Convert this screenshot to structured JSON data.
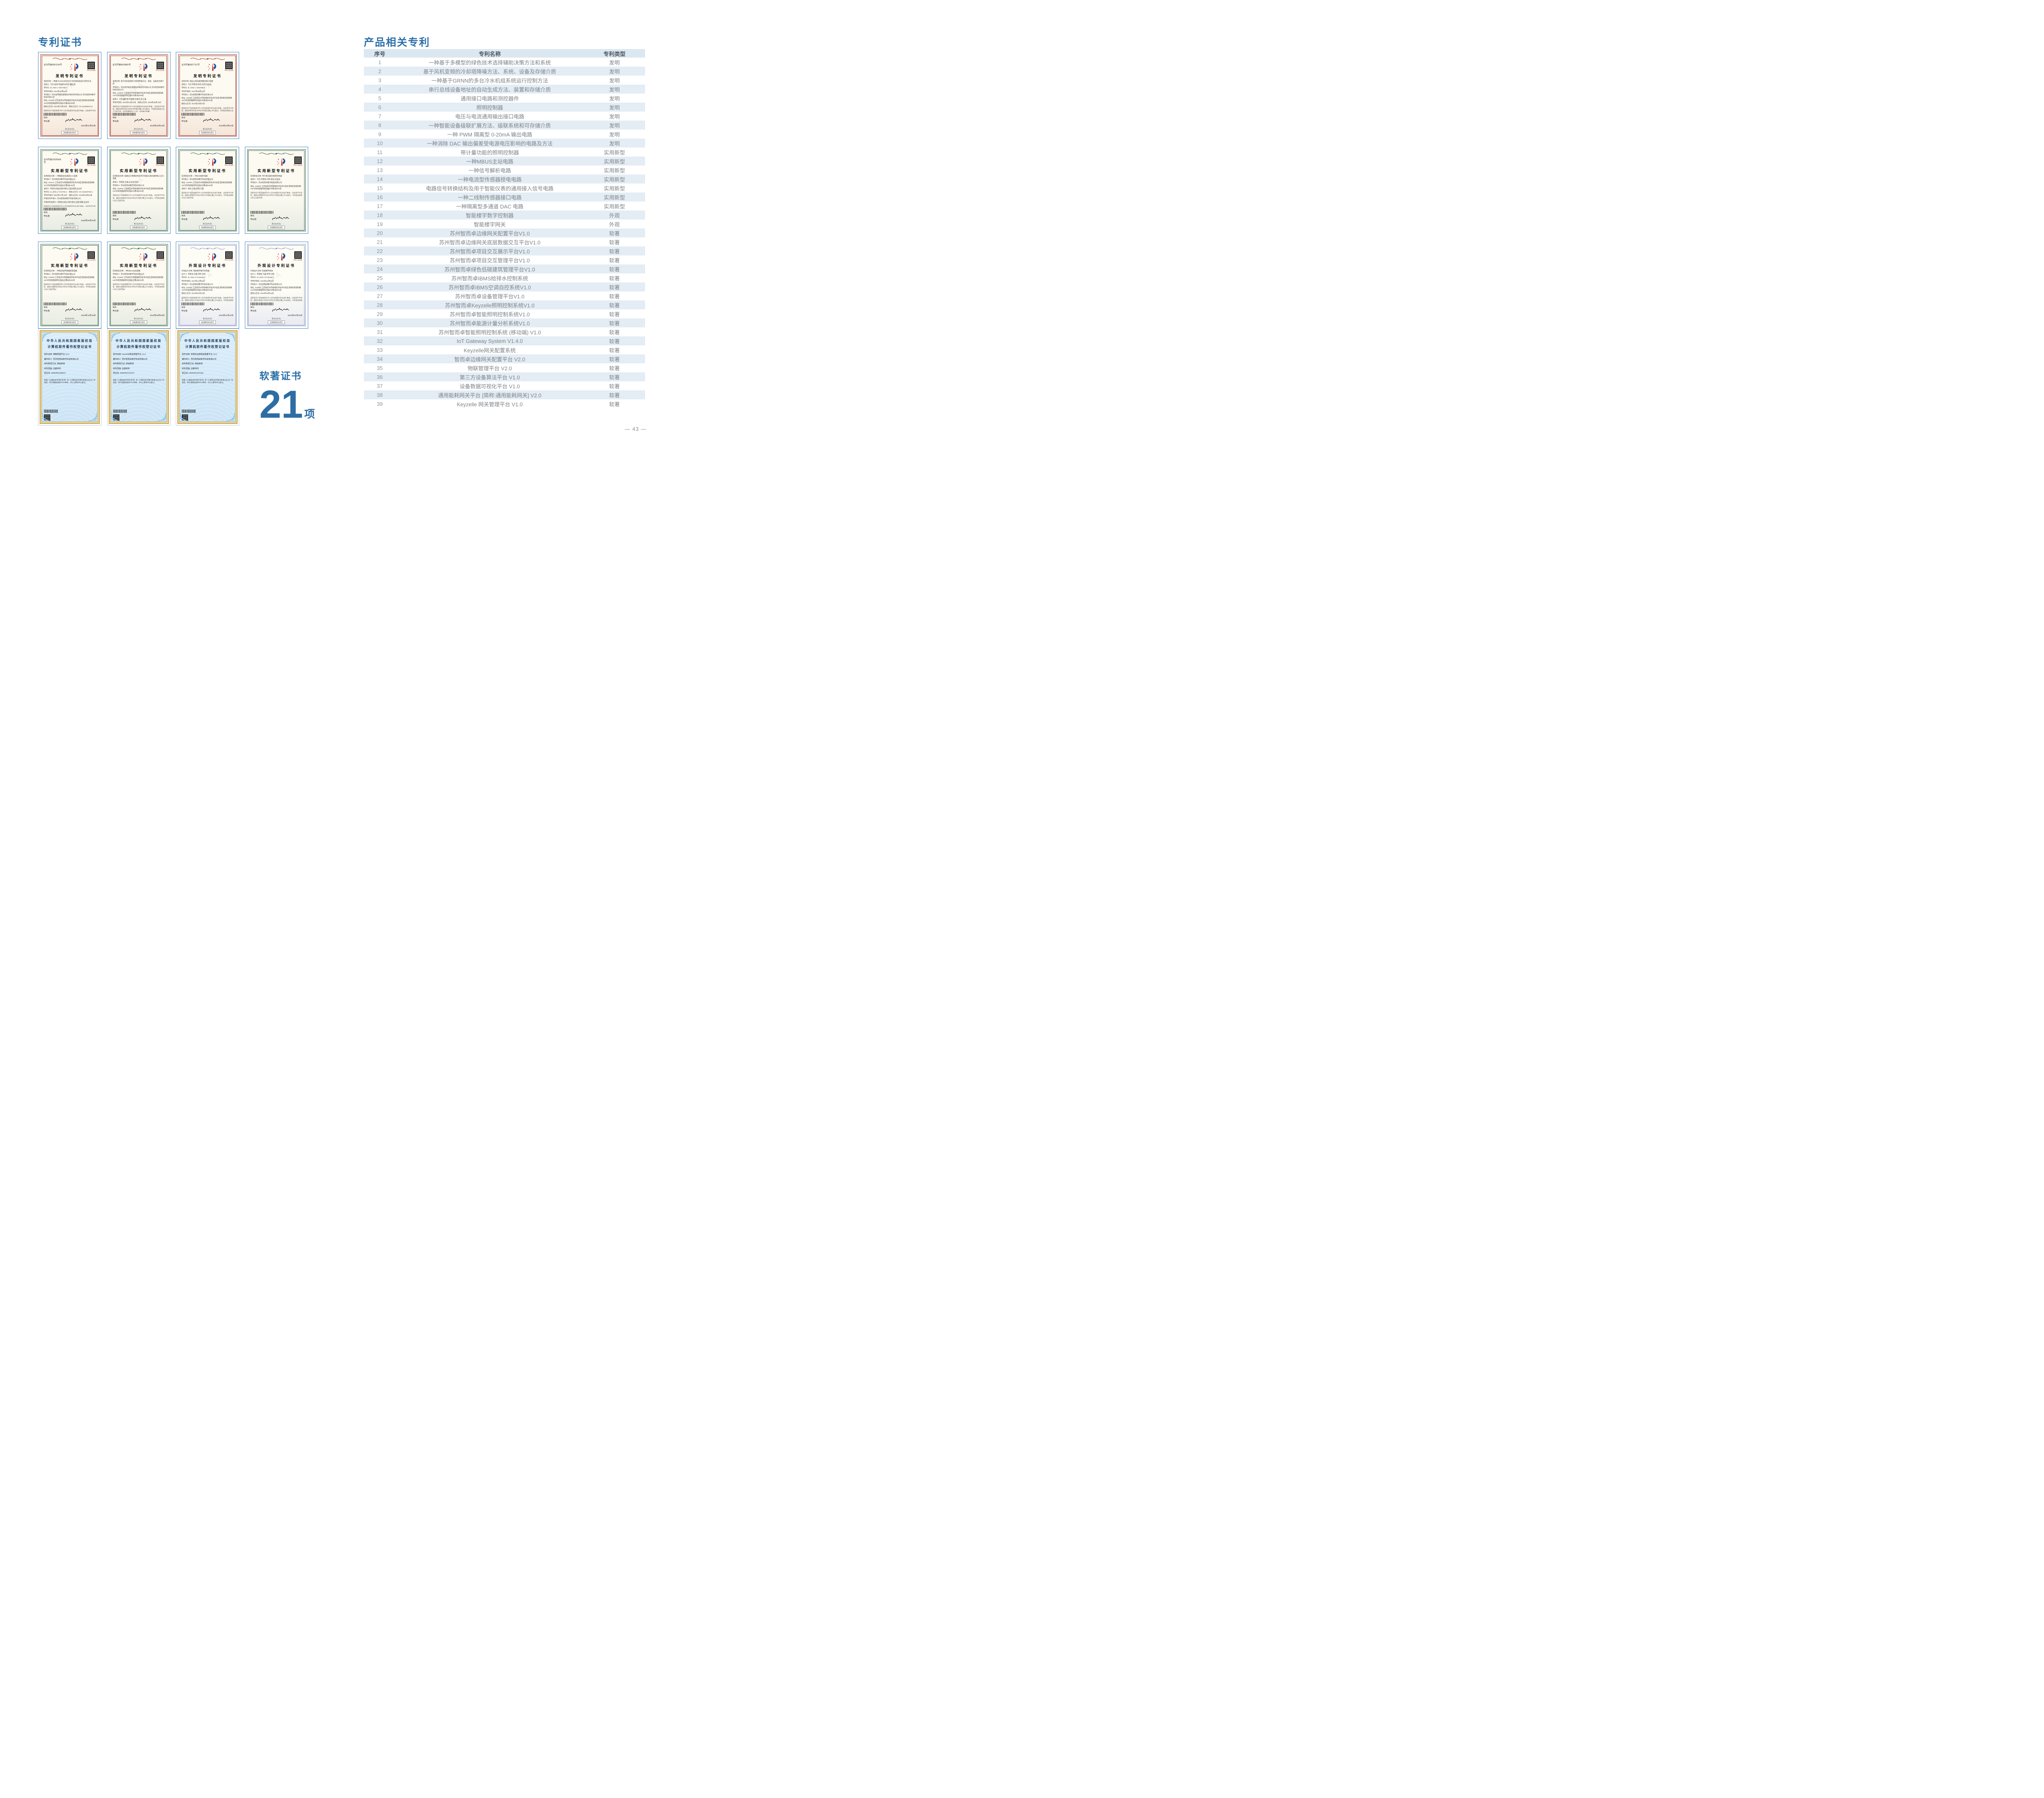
{
  "page": {
    "number": "— 43 —"
  },
  "left": {
    "title": "专利证书",
    "soft": {
      "label": "软著证书",
      "count": "21",
      "unit": "项"
    },
    "labels": {
      "qr_caption": "专利公告信息",
      "sign_title": "局长",
      "sign_name": "申长雨",
      "page_note": "第1页(共2页)",
      "footer_note": "其他事项参见续页"
    },
    "software_header": {
      "line1": "中华人民共和国国家版权局",
      "line2": "计算机软件著作权登记证书"
    },
    "statements": {
      "invention": "国家知识产权局依照中华人民共和国专利法进行审查，决定授予专利权，颁发发明专利证书并在专利登记簿上予以登记。专利权自授权公告之日起生效。专利权期限为二十年，自申请日起算。",
      "utility": "国家知识产权局依照中华人民共和国专利法进行审查，决定授予专利权，颁发实用新型专利证书并在专利登记簿上予以登记。专利权自授权公告之日起生效。",
      "design": "国家知识产权局依照中华人民共和国专利法进行审查，决定授予专利权，颁发外观设计专利证书并在专利登记簿上予以登记。专利权自授权公告之日起生效。",
      "software": "根据《计算机软件保护条例》和《计算机软件著作权登记办法》的规定，经中国版权保护中心审核，对以上事项予以登记。"
    },
    "rows": [
      {
        "cards": [
          {
            "variant": "invention",
            "title": "发明专利证书",
            "cert_no": "证书号第6661534号",
            "lines": [
              "发明名称: 一种基于GRNN的多台冷水机组系统运行控制方法",
              "发明人: 马杰;袁琦;李国建;孙日近;董红林",
              "专利号: ZL 2022 1 0427340.7",
              "专利申请日: 2022年04月22日",
              "专利权人: 苏州思萃融合基建技术研究所有限公司 苏州智而卓数字科技有限公司",
              "地址: 215000 江苏省苏州市相城经济技术开发区澄阳街道澄阳路116号阳澄湖国际科创园3号楼4层408室",
              "授权公告日: 2024年01月30日　授权公告号: CN 114636212 B"
            ],
            "date": "2024年01月30日"
          },
          {
            "variant": "invention",
            "title": "发明专利证书",
            "cert_no": "证书号第8000883号",
            "lines": [
              "发明名称: 基于风机变频的冷却塔降噪方法、系统、设备及存储介质",
              "专利权人: 苏州思萃融合基建技术研究所有限公司 苏州智而卓数字科技有限公司",
              "地址: 215000 江苏省苏州市相城经济技术开发区澄阳街道澄阳路116号阳澄湖国际科创园3号楼4层408室",
              "发明人: 马杰;董红林;李国建;冰俊华;彭士通",
              "专利申请日: 2022年04月22日　授权公告日: 2025年06月13日"
            ],
            "date": "2025年06月13日"
          },
          {
            "variant": "invention",
            "title": "发明专利证书",
            "cert_no": "证书号第6827761号",
            "lines": [
              "发明名称: 电压与电流通用输出接口电路",
              "发明人: 马杰;李建池;朱亮;刘炜;吴志祥",
              "专利号: ZL 2022 1 1004405.6",
              "专利申请日: 2022年08月22日",
              "专利权人: 苏州智而卓数字科技有限公司",
              "地址: 215000 江苏省苏州市相城经济技术开发区澄阳街道澄阳路116号阳澄湖国际科创园3号楼4层402室",
              "授权公告日: 2024年03月22日"
            ],
            "date": "2024年03月22日"
          }
        ]
      },
      {
        "cards": [
          {
            "variant": "utility",
            "title": "实用新型专利证书",
            "cert_no": "证书号第22926608号",
            "lines": [
              "实用新型名称: 一种隔离型多通道DAC电路",
              "专利权人: 苏州智而卓数字科技有限公司",
              "地址: 215131 江苏省苏州市相城经济技术开发区澄阳街道澄阳路116号阳澄湖国际科创园3号楼4层402室",
              "发明人: 李建池;高波;刘炜;黄亮;王磊;陈鹏;吴志祥",
              "专利号: ZL 2024 2 1724792.2　授权公告号: CN 222940799 U",
              "专利申请日: 2024年07月19日　授权公告日: 2025年06月03日",
              "申请日时申请人: 苏州智而卓数字科技有限公司",
              "申请日时发明人: 李建池;高波;刘炜;黄亮;王磊;陈鹏;吴志祥"
            ],
            "date": "2025年06月03日"
          },
          {
            "variant": "utility",
            "title": "实用新型专利证书",
            "cert_no": "",
            "lines": [
              "实用新型名称: 电路信号转换结构及用于智能仪表的通用接入信号电路",
              "发明人: 李建池;王磊;吴志祥;刘炜",
              "专利权人: 苏州智而卓数字科技有限公司",
              "地址: 215000 江苏省苏州市相城经济技术开发区澄阳街道澄阳路116号阳澄湖国际科创园3号楼4层402室"
            ],
            "date": ""
          },
          {
            "variant": "utility",
            "title": "实用新型专利证书",
            "cert_no": "",
            "lines": [
              "实用新型名称: 一种信号解析电路",
              "专利权人: 苏州智而卓数字科技有限公司",
              "地址: 215000 江苏省苏州市相城经济技术开发区澄阳街道澄阳路116号阳澄湖国际科创园3号楼4层402室",
              "发明人: 黄亮;王磊;李炜;马晨"
            ],
            "date": ""
          },
          {
            "variant": "utility",
            "title": "实用新型专利证书",
            "cert_no": "",
            "lines": [
              "实用新型名称: 带计量功能的照明控制器",
              "发明人: 马杰;李建池;刘炜;黄亮;吴志祥",
              "专利权人: 苏州智而卓数字科技有限公司",
              "地址: 215000 江苏省苏州市相城经济技术开发区澄阳街道澄阳路116号阳澄湖国际科创园3号楼4层402室"
            ],
            "date": ""
          }
        ]
      },
      {
        "cards": [
          {
            "variant": "utility",
            "title": "实用新型专利证书",
            "cert_no": "",
            "lines": [
              "实用新型名称: 一种电流型传感器授电电路",
              "专利权人: 苏州智而卓数字科技有限公司",
              "地址: 215000 江苏省苏州市相城经济技术开发区澄阳街道澄阳路116号阳澄湖国际科创园3号楼4层402室"
            ],
            "date": "2024年10月15日"
          },
          {
            "variant": "utility",
            "title": "实用新型专利证书",
            "cert_no": "",
            "lines": [
              "实用新型名称: 一种MBUS主站电路",
              "专利权人: 苏州智而卓数字科技有限公司",
              "地址: 215000 江苏省苏州市相城经济技术开发区澄阳街道澄阳路116号阳澄湖国际科创园3号楼4层402室"
            ],
            "date": "2024年09月03日"
          },
          {
            "variant": "design",
            "title": "外观设计专利证书",
            "cert_no": "",
            "lines": [
              "外观设计名称: 智能楼宇数字控制器",
              "设计人: 李建池;马晨;李昕;刘炜",
              "专利号: ZL 2023 3 0715492.2",
              "专利申请日: 2023年11月02日",
              "专利权人: 苏州智而卓数字科技有限公司",
              "地址: 215000 江苏省苏州市相城经济技术开发区澄阳街道澄阳路116号阳澄湖国际科创园3号楼4层402室",
              "授权公告日: 2024年04月16日"
            ],
            "date": "2024年04月16日"
          },
          {
            "variant": "design",
            "title": "外观设计专利证书",
            "cert_no": "",
            "lines": [
              "外观设计名称: 智能楼宇网关",
              "设计人: 李建池;马晨;李昕;刘炜",
              "专利号: ZL 2023 3 0715494.1",
              "专利申请日: 2023年11月02日",
              "专利权人: 苏州智而卓数字科技有限公司",
              "地址: 215000 江苏省苏州市相城经济技术开发区澄阳街道澄阳路116号阳澄湖国际科创园3号楼4层402室",
              "授权公告日: 2024年04月16日"
            ],
            "date": "2024年04月16日"
          }
        ]
      },
      {
        "cards": [
          {
            "variant": "software",
            "lines": [
              "软件名称: 物联管理平台 V2.0",
              "著作权人: 苏州智而卓数字科技有限公司",
              "权利取得方式: 原始取得",
              "权利范围: 全部权利",
              "登记号: 2025SR1206817"
            ]
          },
          {
            "variant": "software",
            "lines": [
              "软件名称: Keyzelle网关管理平台 V1.0",
              "著作权人: 苏州智而卓数字科技有限公司",
              "权利取得方式: 原始取得",
              "权利范围: 全部权利",
              "登记号: 2025SR1179477"
            ]
          },
          {
            "variant": "software",
            "lines": [
              "软件名称: 智而卓边缘网关配置平台 V2.0",
              "著作权人: 苏州智而卓数字科技有限公司",
              "权利取得方式: 原始取得",
              "权利范围: 全部权利",
              "登记号: 2025SR1207251"
            ]
          }
        ]
      }
    ]
  },
  "right": {
    "title": "产品相关专利",
    "table": {
      "headers": [
        "序号",
        "专利名称",
        "专利类型"
      ],
      "rows": [
        {
          "no": "1",
          "name": "一种基于多模型的绿色技术选择辅助决策方法和系统",
          "type": "发明"
        },
        {
          "no": "2",
          "name": "基于风机变频的冷却塔降噪方法、系统、设备及存储介质",
          "type": "发明"
        },
        {
          "no": "3",
          "name": "一种基于GRNN的多台冷水机组系统运行控制方法",
          "type": "发明"
        },
        {
          "no": "4",
          "name": "串行总线设备地址的自动生成方法、装置和存储介质",
          "type": "发明"
        },
        {
          "no": "5",
          "name": "通用接口电路和测控器件",
          "type": "发明"
        },
        {
          "no": "6",
          "name": "照明控制器",
          "type": "发明"
        },
        {
          "no": "7",
          "name": "电压与电流通用输出接口电路",
          "type": "发明"
        },
        {
          "no": "8",
          "name": "一种智能设备级联扩展方法、级联系统和可存储介质",
          "type": "发明"
        },
        {
          "no": "9",
          "name": "一种 PWM 隔离型 0-20mA 输出电路",
          "type": "发明"
        },
        {
          "no": "10",
          "name": "一种消除 DAC 输出偏差受电源电压影响的电路及方法",
          "type": "发明"
        },
        {
          "no": "11",
          "name": "带计量功能的照明控制器",
          "type": "实用新型"
        },
        {
          "no": "12",
          "name": "一种MBUS主站电路",
          "type": "实用新型"
        },
        {
          "no": "13",
          "name": "一种信号解析电路",
          "type": "实用新型"
        },
        {
          "no": "14",
          "name": "一种电流型传感器授电电路",
          "type": "实用新型"
        },
        {
          "no": "15",
          "name": "电路信号转换结构及用于智能仪表的通用接入信号电路",
          "type": "实用新型"
        },
        {
          "no": "16",
          "name": "一种二线制传感器接口电路",
          "type": "实用新型"
        },
        {
          "no": "17",
          "name": "一种隔离型多通道 DAC 电路",
          "type": "实用新型"
        },
        {
          "no": "18",
          "name": "智能楼宇数字控制器",
          "type": "外观"
        },
        {
          "no": "19",
          "name": "智能楼宇网关",
          "type": "外观"
        },
        {
          "no": "20",
          "name": "苏州智而卓边缘网关配置平台V1.0",
          "type": "软著"
        },
        {
          "no": "21",
          "name": "苏州智而卓边缘网关底层数据交互平台V1.0",
          "type": "软著"
        },
        {
          "no": "22",
          "name": "苏州智而卓项目交互展示平台V1.0",
          "type": "软著"
        },
        {
          "no": "23",
          "name": "苏州智而卓项目交互管理平台V1.0",
          "type": "软著"
        },
        {
          "no": "24",
          "name": "苏州智而卓绿色低碳建筑管理平台V1.0",
          "type": "软著"
        },
        {
          "no": "25",
          "name": "苏州智而卓IBMS给排水控制系统",
          "type": "软著"
        },
        {
          "no": "26",
          "name": "苏州智而卓IBMS空调自控系统V1.0",
          "type": "软著"
        },
        {
          "no": "27",
          "name": "苏州智而卓设备管理平台V1.0",
          "type": "软著"
        },
        {
          "no": "28",
          "name": "苏州智而卓Keyzelle照明控制系统V1.0",
          "type": "软著"
        },
        {
          "no": "29",
          "name": "苏州智而卓智能照明控制系统V1.0",
          "type": "软著"
        },
        {
          "no": "30",
          "name": "苏州智而卓能源计量分析系统V1.0",
          "type": "软著"
        },
        {
          "no": "31",
          "name": "苏州智而卓智能照明控制系统 (移动端) V1.0",
          "type": "软著"
        },
        {
          "no": "32",
          "name": "IoT Gateway System V1.4.0",
          "type": "软著"
        },
        {
          "no": "33",
          "name": "Keyzelle网关配置系统",
          "type": "软著"
        },
        {
          "no": "34",
          "name": "智而卓边缘网关配置平台 V2.0",
          "type": "软著"
        },
        {
          "no": "35",
          "name": "物联管理平台 V2.0",
          "type": "软著"
        },
        {
          "no": "36",
          "name": "第三方设备算法平台 V1.0",
          "type": "软著"
        },
        {
          "no": "37",
          "name": "设备数据可视化平台 V1.0",
          "type": "软著"
        },
        {
          "no": "38",
          "name": "通用能耗网关平台 [简称:通用能耗网关] V2.0",
          "type": "软著"
        },
        {
          "no": "39",
          "name": "Keyzelle 网关管理平台 V1.0",
          "type": "软著"
        }
      ]
    }
  }
}
